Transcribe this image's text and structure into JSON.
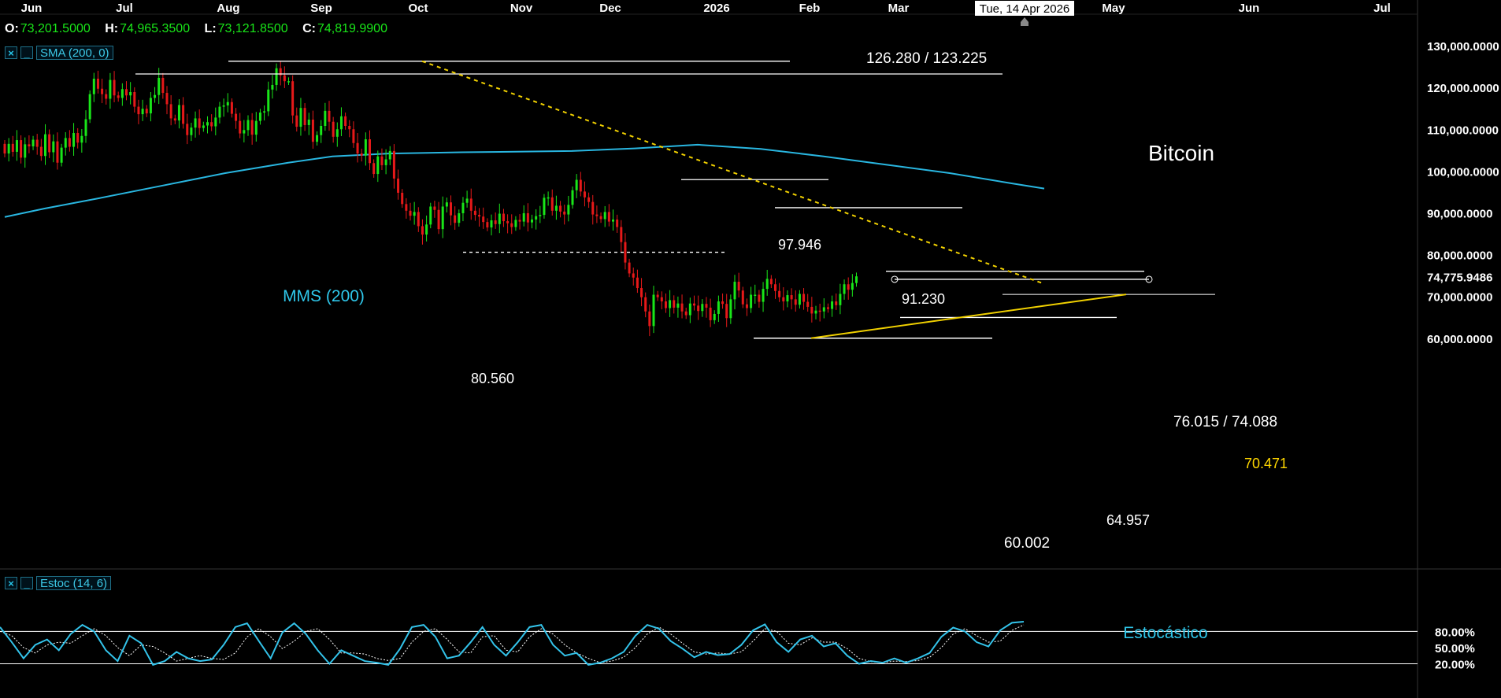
{
  "ohlc": {
    "open_label": "O:",
    "open": "73,201.5000",
    "high_label": "H:",
    "high": "74,965.3500",
    "low_label": "L:",
    "low": "73,121.8500",
    "close_label": "C:",
    "close": "74,819.9900"
  },
  "indicators": {
    "sma_legend": "SMA (200, 0)",
    "stoch_legend": "Estoc (14, 6)",
    "close_icon": "close-x-icon",
    "minimize_icon": "minimize-icon"
  },
  "colors": {
    "background": "#000000",
    "up_candle": "#19e619",
    "down_candle": "#e61919",
    "sma": "#29b6e0",
    "stoch_main": "#33c3ea",
    "trendline": "#f0d000",
    "level_lines": "#ffffff",
    "yellow_label": "#ffd700"
  },
  "chart_data": [
    {
      "type": "candlestick",
      "instrument": "Bitcoin",
      "x_labels": [
        "Jun",
        "Jul",
        "Aug",
        "Sep",
        "Oct",
        "Nov",
        "Dec",
        "2026",
        "Feb",
        "Mar",
        "May",
        "Jun",
        "Jul"
      ],
      "crosshair_date": "Tue, 14 Apr 2026",
      "y_ticks": [
        "130,000.0000",
        "120,000.0000",
        "110,000.0000",
        "100,000.0000",
        "90,000.0000",
        "80,000.0000",
        "70,000.0000",
        "60,000.0000"
      ],
      "y_ticks_values": [
        130000,
        120000,
        110000,
        100000,
        90000,
        80000,
        70000,
        60000
      ],
      "ylim": [
        57500,
        131500
      ],
      "current_price_label": "74,775.9486",
      "current_price": 74775.9486,
      "candles_oc": [
        [
          106500,
          104200
        ],
        [
          104200,
          106500
        ],
        [
          106500,
          104600
        ],
        [
          104600,
          107400
        ],
        [
          107400,
          103200
        ],
        [
          103200,
          106400
        ],
        [
          106400,
          105900
        ],
        [
          105900,
          107500
        ],
        [
          107500,
          105800
        ],
        [
          105800,
          103600
        ],
        [
          103600,
          108800
        ],
        [
          108800,
          104500
        ],
        [
          104500,
          107100
        ],
        [
          107100,
          102000
        ],
        [
          102000,
          105600
        ],
        [
          105600,
          107900
        ],
        [
          107900,
          105800
        ],
        [
          105800,
          109100
        ],
        [
          109100,
          106800
        ],
        [
          106800,
          108400
        ],
        [
          108400,
          112400
        ],
        [
          112400,
          118400
        ],
        [
          118400,
          122100
        ],
        [
          122100,
          119700
        ],
        [
          119700,
          118400
        ],
        [
          118400,
          117300
        ],
        [
          117300,
          121800
        ],
        [
          121800,
          118100
        ],
        [
          118100,
          117500
        ],
        [
          117500,
          119600
        ],
        [
          119600,
          118100
        ],
        [
          118100,
          118900
        ],
        [
          118900,
          115400
        ],
        [
          115400,
          113600
        ],
        [
          113600,
          114900
        ],
        [
          114900,
          113800
        ],
        [
          113800,
          117500
        ],
        [
          117500,
          118200
        ],
        [
          118200,
          122300
        ],
        [
          122300,
          118700
        ],
        [
          118700,
          116000
        ],
        [
          116000,
          112600
        ],
        [
          112600,
          112100
        ],
        [
          112100,
          115800
        ],
        [
          115800,
          111300
        ],
        [
          111300,
          108600
        ],
        [
          108600,
          110400
        ],
        [
          110400,
          112600
        ],
        [
          112600,
          110300
        ],
        [
          110300,
          110900
        ],
        [
          110900,
          111700
        ],
        [
          111700,
          110700
        ],
        [
          110700,
          112800
        ],
        [
          112800,
          115400
        ],
        [
          115400,
          115700
        ],
        [
          115700,
          116500
        ],
        [
          116500,
          113700
        ],
        [
          113700,
          112000
        ],
        [
          112000,
          109000
        ],
        [
          109000,
          109800
        ],
        [
          109800,
          112200
        ],
        [
          112200,
          108700
        ],
        [
          108700,
          112000
        ],
        [
          112000,
          114000
        ],
        [
          114000,
          114300
        ],
        [
          114300,
          119500
        ],
        [
          119500,
          120600
        ],
        [
          120600,
          124600
        ],
        [
          124600,
          122900
        ],
        [
          122900,
          121500
        ],
        [
          121500,
          121500
        ],
        [
          121500,
          113300
        ],
        [
          113300,
          110600
        ],
        [
          110600,
          115100
        ],
        [
          115100,
          111000
        ],
        [
          111000,
          112300
        ],
        [
          112300,
          107000
        ],
        [
          107000,
          108600
        ],
        [
          108600,
          110800
        ],
        [
          110800,
          114400
        ],
        [
          114400,
          111800
        ],
        [
          111800,
          108200
        ],
        [
          108200,
          110000
        ],
        [
          110000,
          113100
        ],
        [
          113100,
          110800
        ],
        [
          110800,
          110000
        ],
        [
          110000,
          106700
        ],
        [
          106700,
          104200
        ],
        [
          104200,
          103700
        ],
        [
          103700,
          107600
        ],
        [
          107600,
          101900
        ],
        [
          101900,
          99300
        ],
        [
          99300,
          103500
        ],
        [
          103500,
          101400
        ],
        [
          101400,
          102800
        ],
        [
          102800,
          104800
        ],
        [
          104800,
          98200
        ],
        [
          98200,
          94800
        ],
        [
          94800,
          92100
        ],
        [
          92100,
          90500
        ],
        [
          90500,
          89300
        ],
        [
          89300,
          90200
        ],
        [
          90200,
          86800
        ],
        [
          86800,
          84800
        ],
        [
          84800,
          87200
        ],
        [
          87200,
          91500
        ],
        [
          91500,
          90700
        ],
        [
          90700,
          86100
        ],
        [
          86100,
          91500
        ],
        [
          91500,
          92500
        ],
        [
          92500,
          89400
        ],
        [
          89400,
          87600
        ],
        [
          87600,
          89900
        ],
        [
          89900,
          92400
        ],
        [
          92400,
          93400
        ],
        [
          93400,
          90500
        ],
        [
          90500,
          89500
        ],
        [
          89500,
          89100
        ],
        [
          89100,
          87800
        ],
        [
          87800,
          86500
        ],
        [
          86500,
          88200
        ],
        [
          88200,
          87300
        ],
        [
          87300,
          89800
        ],
        [
          89800,
          88000
        ],
        [
          88000,
          87500
        ],
        [
          87500,
          86600
        ],
        [
          86600,
          88300
        ],
        [
          88300,
          87900
        ],
        [
          87900,
          89900
        ],
        [
          89900,
          87700
        ],
        [
          87700,
          88400
        ],
        [
          88400,
          89200
        ],
        [
          89200,
          89500
        ],
        [
          89500,
          93600
        ],
        [
          93600,
          93700
        ],
        [
          93700,
          90500
        ],
        [
          90500,
          91700
        ],
        [
          91700,
          90300
        ],
        [
          90300,
          89600
        ],
        [
          89600,
          91900
        ],
        [
          91900,
          95400
        ],
        [
          95400,
          97900
        ],
        [
          97900,
          95100
        ],
        [
          95100,
          93700
        ],
        [
          93700,
          92600
        ],
        [
          92600,
          89600
        ],
        [
          89600,
          89200
        ],
        [
          89200,
          88500
        ],
        [
          88500,
          90200
        ],
        [
          90200,
          87900
        ],
        [
          87900,
          88400
        ],
        [
          88400,
          86600
        ],
        [
          86600,
          83000
        ],
        [
          83000,
          78100
        ],
        [
          78100,
          75500
        ],
        [
          75500,
          74500
        ],
        [
          74500,
          72000
        ],
        [
          72000,
          69800
        ],
        [
          69800,
          66400
        ],
        [
          66400,
          62900
        ],
        [
          62900,
          70400
        ],
        [
          70400,
          69800
        ],
        [
          69800,
          68800
        ],
        [
          68800,
          67200
        ],
        [
          67200,
          69100
        ],
        [
          69100,
          67300
        ],
        [
          67300,
          68300
        ],
        [
          68300,
          66400
        ],
        [
          66400,
          65500
        ],
        [
          65500,
          68300
        ],
        [
          68300,
          67800
        ],
        [
          67800,
          66500
        ],
        [
          66500,
          68200
        ],
        [
          68200,
          67300
        ],
        [
          67300,
          64300
        ],
        [
          64300,
          65800
        ],
        [
          65800,
          68800
        ],
        [
          68800,
          68200
        ],
        [
          68200,
          64800
        ],
        [
          64800,
          69300
        ],
        [
          69300,
          73500
        ],
        [
          73500,
          71400
        ],
        [
          71400,
          68100
        ],
        [
          68100,
          67200
        ],
        [
          67200,
          70400
        ],
        [
          70400,
          70400
        ],
        [
          70400,
          68700
        ],
        [
          68700,
          71800
        ],
        [
          71800,
          74200
        ],
        [
          74200,
          72900
        ],
        [
          72900,
          71300
        ],
        [
          71300,
          69800
        ],
        [
          69800,
          68800
        ],
        [
          68800,
          70300
        ],
        [
          70300,
          69300
        ],
        [
          69300,
          68000
        ],
        [
          68000,
          70600
        ],
        [
          70600,
          68700
        ],
        [
          68700,
          67500
        ],
        [
          67500,
          65900
        ],
        [
          65900,
          66600
        ],
        [
          66600,
          66400
        ],
        [
          66400,
          67400
        ],
        [
          67400,
          67000
        ],
        [
          67000,
          68800
        ],
        [
          68800,
          67900
        ],
        [
          67900,
          70600
        ],
        [
          70600,
          72900
        ],
        [
          72900,
          71600
        ],
        [
          71600,
          73200
        ],
        [
          73200,
          74800
        ]
      ],
      "sma_200": [
        [
          0,
          89000
        ],
        [
          25,
          91000
        ],
        [
          60,
          93500
        ],
        [
          100,
          96500
        ],
        [
          140,
          99500
        ],
        [
          180,
          102000
        ],
        [
          208,
          103500
        ],
        [
          245,
          104200
        ],
        [
          290,
          104500
        ],
        [
          320,
          104600
        ],
        [
          360,
          104800
        ],
        [
          400,
          105400
        ],
        [
          440,
          106300
        ],
        [
          480,
          105300
        ],
        [
          520,
          103500
        ],
        [
          560,
          101500
        ],
        [
          600,
          99500
        ],
        [
          640,
          97000
        ],
        [
          660,
          95800
        ]
      ],
      "trendline_resistance": [
        [
          0,
          126280
        ],
        [
          330,
          73000
        ]
      ],
      "trendline_support": [
        [
          207,
          60002
        ],
        [
          357,
          70471
        ]
      ],
      "levels": [
        {
          "label": "126.280 / 123.225",
          "y": [
            126280,
            123225
          ]
        },
        {
          "label": "97.946",
          "y": 97946
        },
        {
          "label": "91.230",
          "y": 91230
        },
        {
          "label": "80.560",
          "y": 80560,
          "style": "dashed"
        },
        {
          "label": "76.015 / 74.088",
          "y": [
            76015,
            74088
          ]
        },
        {
          "label": "70.471",
          "y": 70471,
          "color": "yellow"
        },
        {
          "label": "64.957",
          "y": 64957
        },
        {
          "label": "60.002",
          "y": 60002
        }
      ],
      "annotations": {
        "title": "Bitcoin",
        "sma_label": "MMS (200)"
      }
    },
    {
      "type": "line",
      "title": "Estocástico",
      "y_ticks": [
        "80.00%",
        "50.00%",
        "20.00%"
      ],
      "y_ticks_values": [
        80,
        50,
        20
      ],
      "ylim": [
        0,
        100
      ],
      "series": [
        {
          "values": [
            88,
            60,
            30,
            55,
            65,
            45,
            75,
            92,
            80,
            45,
            25,
            72,
            58,
            18,
            25,
            42,
            30,
            25,
            28,
            55,
            88,
            95,
            62,
            30,
            78,
            95,
            75,
            45,
            20,
            45,
            35,
            25,
            22,
            18,
            48,
            88,
            92,
            70,
            30,
            35,
            60,
            88,
            55,
            35,
            60,
            88,
            92,
            55,
            35,
            40,
            18,
            22,
            30,
            42,
            72,
            92,
            85,
            62,
            48,
            32,
            42,
            36,
            38,
            55,
            82,
            93,
            60,
            42,
            65,
            72,
            52,
            58,
            35,
            20,
            25,
            22,
            30,
            22,
            30,
            40,
            70,
            87,
            80,
            60,
            52,
            82,
            96,
            98
          ]
        },
        {
          "values": [
            80,
            72,
            50,
            40,
            55,
            60,
            58,
            72,
            85,
            72,
            50,
            35,
            55,
            52,
            40,
            25,
            30,
            35,
            30,
            28,
            40,
            70,
            85,
            70,
            48,
            62,
            80,
            85,
            65,
            40,
            40,
            38,
            30,
            26,
            30,
            60,
            80,
            85,
            65,
            42,
            40,
            70,
            72,
            45,
            42,
            70,
            85,
            75,
            55,
            40,
            30,
            22,
            25,
            32,
            50,
            75,
            88,
            75,
            58,
            42,
            38,
            40,
            38,
            42,
            62,
            85,
            80,
            58,
            55,
            68,
            60,
            60,
            48,
            30,
            24,
            22,
            25,
            24,
            26,
            32,
            50,
            75,
            85,
            72,
            60,
            62,
            82,
            92
          ]
        }
      ]
    }
  ]
}
